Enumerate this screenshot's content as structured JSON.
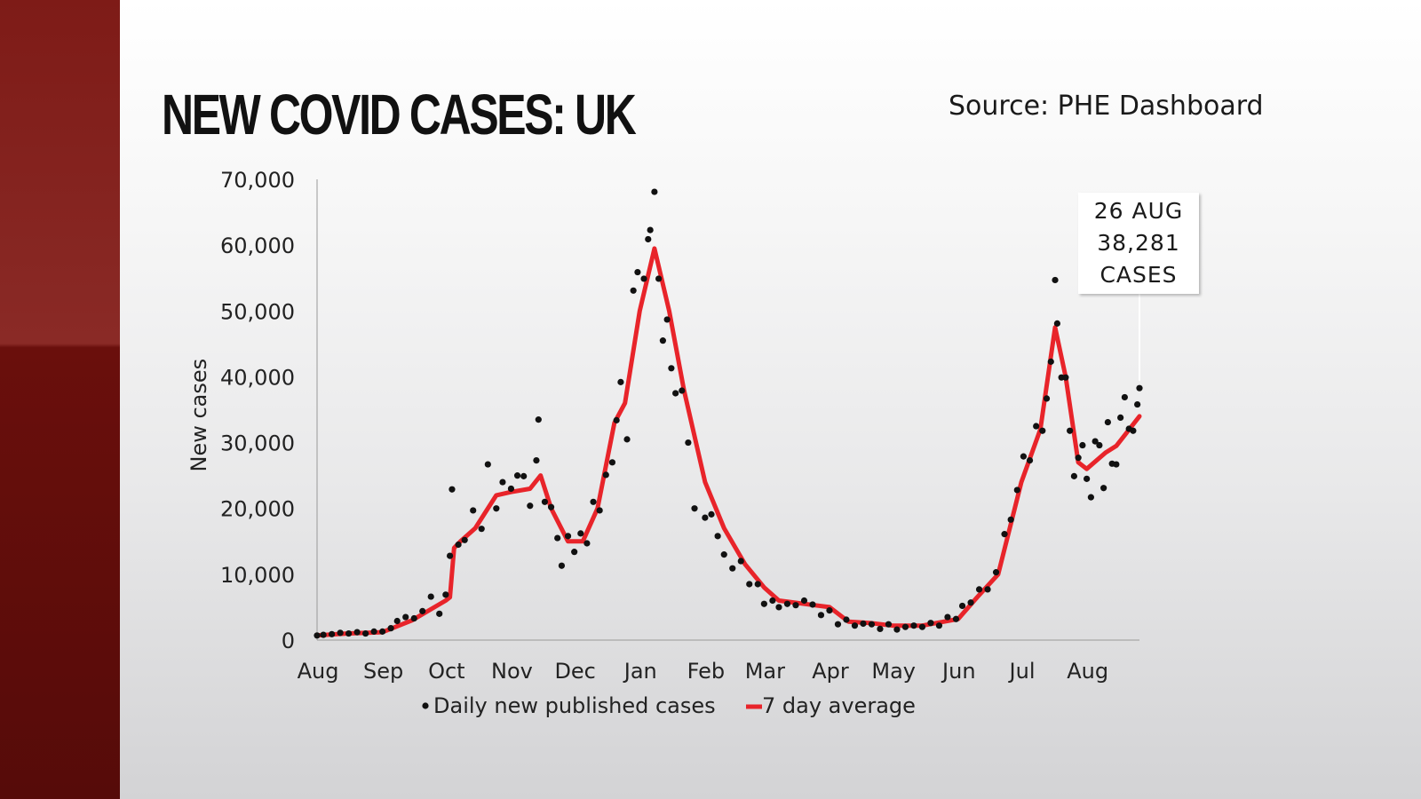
{
  "title": "NEW COVID CASES: UK",
  "source": "Source: PHE Dashboard",
  "colors": {
    "average_line": "#e8242a",
    "daily_points": "#111111",
    "side_strip": "#7e1b17"
  },
  "callout": {
    "line1": "26 AUG",
    "line2": "38,281",
    "line3": "CASES"
  },
  "chart_data": {
    "type": "scatter+line",
    "ylabel": "New cases",
    "xlabel": "",
    "ylim": [
      0,
      70000
    ],
    "yticks": [
      0,
      10000,
      20000,
      30000,
      40000,
      50000,
      60000,
      70000
    ],
    "ytick_labels": [
      "0",
      "10,000",
      "20,000",
      "30,000",
      "40,000",
      "50,000",
      "60,000",
      "70,000"
    ],
    "xlim": [
      "2020-08-01",
      "2021-08-26"
    ],
    "xticks": [
      {
        "date": "2020-08-01",
        "label": "Aug"
      },
      {
        "date": "2020-09-01",
        "label": "Sep"
      },
      {
        "date": "2020-10-01",
        "label": "Oct"
      },
      {
        "date": "2020-11-01",
        "label": "Nov"
      },
      {
        "date": "2020-12-01",
        "label": "Dec"
      },
      {
        "date": "2021-01-01",
        "label": "Jan"
      },
      {
        "date": "2021-02-01",
        "label": "Feb"
      },
      {
        "date": "2021-03-01",
        "label": "Mar"
      },
      {
        "date": "2021-04-01",
        "label": "Apr"
      },
      {
        "date": "2021-05-01",
        "label": "May"
      },
      {
        "date": "2021-06-01",
        "label": "Jun"
      },
      {
        "date": "2021-07-01",
        "label": "Jul"
      },
      {
        "date": "2021-08-01",
        "label": "Aug"
      }
    ],
    "legend": {
      "placement": "bottom",
      "items": [
        {
          "name": "Daily new published cases",
          "marker": "dot"
        },
        {
          "name": "7 day average",
          "marker": "line"
        }
      ]
    },
    "series": [
      {
        "name": "Daily new published cases",
        "kind": "scatter",
        "points": [
          [
            "2020-08-01",
            700
          ],
          [
            "2020-08-04",
            800
          ],
          [
            "2020-08-08",
            900
          ],
          [
            "2020-08-12",
            1100
          ],
          [
            "2020-08-16",
            1000
          ],
          [
            "2020-08-20",
            1200
          ],
          [
            "2020-08-24",
            1000
          ],
          [
            "2020-08-28",
            1300
          ],
          [
            "2020-09-01",
            1300
          ],
          [
            "2020-09-05",
            1800
          ],
          [
            "2020-09-08",
            2900
          ],
          [
            "2020-09-12",
            3500
          ],
          [
            "2020-09-16",
            3300
          ],
          [
            "2020-09-20",
            4400
          ],
          [
            "2020-09-24",
            6600
          ],
          [
            "2020-09-28",
            4000
          ],
          [
            "2020-10-01",
            6900
          ],
          [
            "2020-10-03",
            12800
          ],
          [
            "2020-10-04",
            22900
          ],
          [
            "2020-10-07",
            14500
          ],
          [
            "2020-10-10",
            15200
          ],
          [
            "2020-10-14",
            19700
          ],
          [
            "2020-10-18",
            16900
          ],
          [
            "2020-10-21",
            26700
          ],
          [
            "2020-10-25",
            20000
          ],
          [
            "2020-10-28",
            24000
          ],
          [
            "2020-11-01",
            23000
          ],
          [
            "2020-11-04",
            25000
          ],
          [
            "2020-11-07",
            24900
          ],
          [
            "2020-11-10",
            20400
          ],
          [
            "2020-11-13",
            27300
          ],
          [
            "2020-11-14",
            33500
          ],
          [
            "2020-11-17",
            21000
          ],
          [
            "2020-11-20",
            20200
          ],
          [
            "2020-11-23",
            15500
          ],
          [
            "2020-11-25",
            11300
          ],
          [
            "2020-11-28",
            15800
          ],
          [
            "2020-12-01",
            13400
          ],
          [
            "2020-12-04",
            16200
          ],
          [
            "2020-12-07",
            14700
          ],
          [
            "2020-12-10",
            21000
          ],
          [
            "2020-12-13",
            19700
          ],
          [
            "2020-12-16",
            25100
          ],
          [
            "2020-12-19",
            27000
          ],
          [
            "2020-12-21",
            33400
          ],
          [
            "2020-12-23",
            39200
          ],
          [
            "2020-12-26",
            30500
          ],
          [
            "2020-12-29",
            53100
          ],
          [
            "2020-12-31",
            55900
          ],
          [
            "2021-01-03",
            54900
          ],
          [
            "2021-01-05",
            60900
          ],
          [
            "2021-01-06",
            62300
          ],
          [
            "2021-01-08",
            68100
          ],
          [
            "2021-01-10",
            54900
          ],
          [
            "2021-01-12",
            45500
          ],
          [
            "2021-01-14",
            48700
          ],
          [
            "2021-01-16",
            41300
          ],
          [
            "2021-01-18",
            37500
          ],
          [
            "2021-01-21",
            37900
          ],
          [
            "2021-01-24",
            30000
          ],
          [
            "2021-01-27",
            20000
          ],
          [
            "2021-02-01",
            18600
          ],
          [
            "2021-02-04",
            19100
          ],
          [
            "2021-02-07",
            15800
          ],
          [
            "2021-02-10",
            13000
          ],
          [
            "2021-02-14",
            10900
          ],
          [
            "2021-02-18",
            12000
          ],
          [
            "2021-02-22",
            8500
          ],
          [
            "2021-02-26",
            8500
          ],
          [
            "2021-03-01",
            5500
          ],
          [
            "2021-03-05",
            6000
          ],
          [
            "2021-03-08",
            5000
          ],
          [
            "2021-03-12",
            5500
          ],
          [
            "2021-03-16",
            5300
          ],
          [
            "2021-03-20",
            6000
          ],
          [
            "2021-03-24",
            5400
          ],
          [
            "2021-03-28",
            3800
          ],
          [
            "2021-04-01",
            4500
          ],
          [
            "2021-04-05",
            2400
          ],
          [
            "2021-04-09",
            3100
          ],
          [
            "2021-04-13",
            2200
          ],
          [
            "2021-04-17",
            2500
          ],
          [
            "2021-04-21",
            2400
          ],
          [
            "2021-04-25",
            1700
          ],
          [
            "2021-04-29",
            2400
          ],
          [
            "2021-05-03",
            1600
          ],
          [
            "2021-05-07",
            2000
          ],
          [
            "2021-05-11",
            2200
          ],
          [
            "2021-05-15",
            2000
          ],
          [
            "2021-05-19",
            2600
          ],
          [
            "2021-05-23",
            2200
          ],
          [
            "2021-05-27",
            3500
          ],
          [
            "2021-05-31",
            3200
          ],
          [
            "2021-06-03",
            5200
          ],
          [
            "2021-06-07",
            5700
          ],
          [
            "2021-06-11",
            7700
          ],
          [
            "2021-06-15",
            7700
          ],
          [
            "2021-06-19",
            10300
          ],
          [
            "2021-06-23",
            16100
          ],
          [
            "2021-06-26",
            18300
          ],
          [
            "2021-06-29",
            22800
          ],
          [
            "2021-07-02",
            27900
          ],
          [
            "2021-07-05",
            27300
          ],
          [
            "2021-07-08",
            32500
          ],
          [
            "2021-07-11",
            31800
          ],
          [
            "2021-07-13",
            36700
          ],
          [
            "2021-07-15",
            42300
          ],
          [
            "2021-07-17",
            54700
          ],
          [
            "2021-07-18",
            48100
          ],
          [
            "2021-07-20",
            39900
          ],
          [
            "2021-07-22",
            39900
          ],
          [
            "2021-07-24",
            31800
          ],
          [
            "2021-07-26",
            24900
          ],
          [
            "2021-07-28",
            27700
          ],
          [
            "2021-07-30",
            29600
          ],
          [
            "2021-08-01",
            24500
          ],
          [
            "2021-08-03",
            21700
          ],
          [
            "2021-08-05",
            30200
          ],
          [
            "2021-08-07",
            29600
          ],
          [
            "2021-08-09",
            23100
          ],
          [
            "2021-08-11",
            33100
          ],
          [
            "2021-08-13",
            26800
          ],
          [
            "2021-08-15",
            26700
          ],
          [
            "2021-08-17",
            33800
          ],
          [
            "2021-08-19",
            36900
          ],
          [
            "2021-08-21",
            32100
          ],
          [
            "2021-08-23",
            31800
          ],
          [
            "2021-08-25",
            35800
          ],
          [
            "2021-08-26",
            38281
          ]
        ]
      },
      {
        "name": "7 day average",
        "kind": "line",
        "points": [
          [
            "2020-08-01",
            700
          ],
          [
            "2020-08-15",
            1000
          ],
          [
            "2020-09-01",
            1200
          ],
          [
            "2020-09-15",
            3000
          ],
          [
            "2020-10-01",
            6000
          ],
          [
            "2020-10-03",
            6500
          ],
          [
            "2020-10-05",
            14000
          ],
          [
            "2020-10-08",
            15000
          ],
          [
            "2020-10-15",
            17000
          ],
          [
            "2020-10-25",
            22000
          ],
          [
            "2020-11-01",
            22500
          ],
          [
            "2020-11-10",
            23000
          ],
          [
            "2020-11-15",
            25000
          ],
          [
            "2020-11-20",
            20000
          ],
          [
            "2020-11-28",
            15000
          ],
          [
            "2020-12-05",
            15000
          ],
          [
            "2020-12-12",
            20000
          ],
          [
            "2020-12-20",
            33000
          ],
          [
            "2020-12-25",
            36000
          ],
          [
            "2021-01-01",
            50000
          ],
          [
            "2021-01-08",
            59500
          ],
          [
            "2021-01-15",
            50000
          ],
          [
            "2021-01-22",
            38000
          ],
          [
            "2021-02-01",
            24000
          ],
          [
            "2021-02-10",
            17000
          ],
          [
            "2021-02-20",
            11500
          ],
          [
            "2021-03-01",
            8000
          ],
          [
            "2021-03-08",
            6000
          ],
          [
            "2021-03-20",
            5500
          ],
          [
            "2021-04-01",
            5000
          ],
          [
            "2021-04-10",
            2800
          ],
          [
            "2021-04-20",
            2600
          ],
          [
            "2021-05-01",
            2200
          ],
          [
            "2021-05-15",
            2200
          ],
          [
            "2021-06-01",
            3200
          ],
          [
            "2021-06-10",
            6500
          ],
          [
            "2021-06-20",
            10000
          ],
          [
            "2021-07-01",
            24000
          ],
          [
            "2021-07-10",
            32000
          ],
          [
            "2021-07-17",
            47500
          ],
          [
            "2021-07-22",
            40000
          ],
          [
            "2021-07-28",
            27000
          ],
          [
            "2021-08-01",
            26000
          ],
          [
            "2021-08-10",
            28500
          ],
          [
            "2021-08-15",
            29500
          ],
          [
            "2021-08-26",
            34000
          ]
        ]
      }
    ]
  }
}
